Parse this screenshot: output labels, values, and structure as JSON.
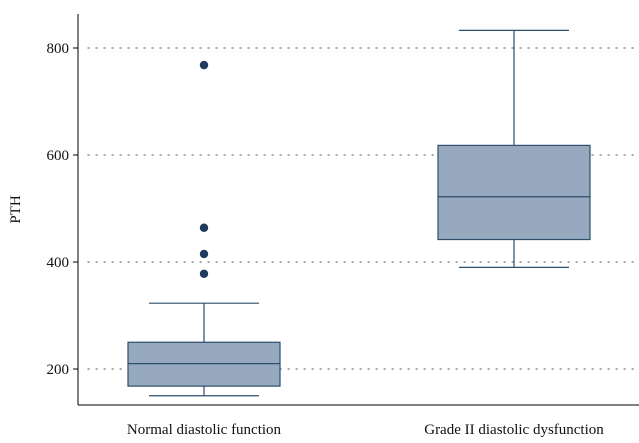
{
  "chart_data": {
    "type": "box",
    "title": "",
    "xlabel": "",
    "ylabel": "PTH",
    "ylim": [
      130,
      865
    ],
    "yticks": [
      200,
      400,
      600,
      800
    ],
    "grid": "horizontal-dotted",
    "legend": "none",
    "categories": [
      "Normal diastolic function",
      "Grade II diastolic dysfunction"
    ],
    "boxes": [
      {
        "category": "Normal diastolic function",
        "whisker_low": 150,
        "q1": 168,
        "median": 210,
        "q3": 250,
        "whisker_high": 323,
        "outliers": [
          378,
          415,
          464,
          768
        ]
      },
      {
        "category": "Grade II diastolic dysfunction",
        "whisker_low": 390,
        "q1": 442,
        "median": 522,
        "q3": 618,
        "whisker_high": 833,
        "outliers": []
      }
    ],
    "colors": {
      "box_fill": "#96a9be",
      "box_stroke": "#2d4d6b",
      "outlier": "#1f3a5c",
      "grid": "#777777"
    }
  }
}
